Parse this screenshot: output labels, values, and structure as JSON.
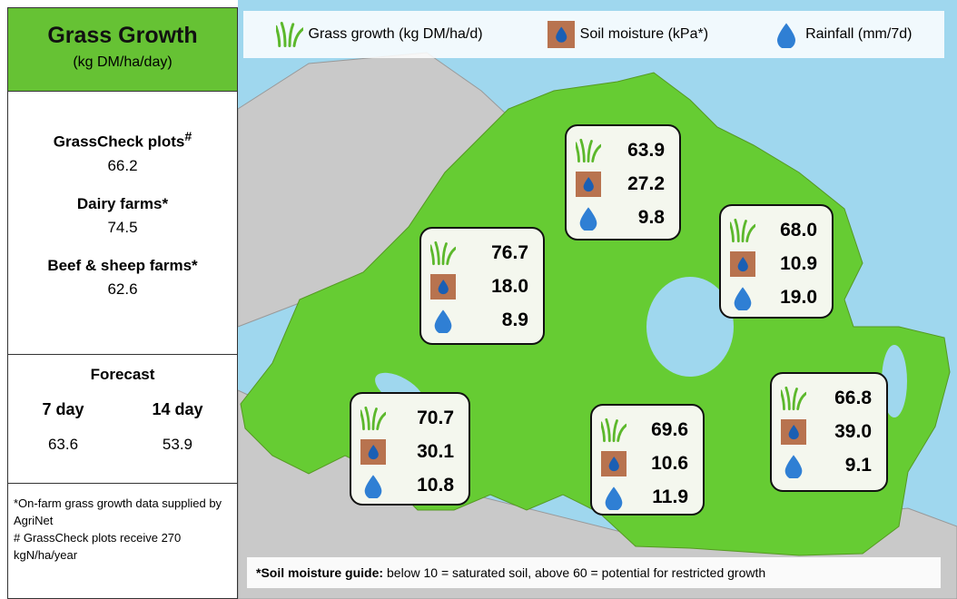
{
  "sidebar": {
    "title": "Grass Growth",
    "subtitle": "(kg DM/ha/day)",
    "stats": [
      {
        "label": "GrassCheck plots",
        "mark": "#",
        "value": "66.2"
      },
      {
        "label": "Dairy farms*",
        "value": "74.5"
      },
      {
        "label": "Beef & sheep farms*",
        "value": "62.6"
      }
    ],
    "forecast": {
      "title": "Forecast",
      "columns": [
        {
          "label": "7 day",
          "value": "63.6"
        },
        {
          "label": "14 day",
          "value": "53.9"
        }
      ]
    },
    "notes": [
      "*On-farm grass growth data supplied by AgriNet",
      "# GrassCheck plots receive 270 kgN/ha/year"
    ]
  },
  "legend": [
    "Grass growth (kg DM/ha/d)",
    "Soil moisture (kPa*)",
    "Rainfall (mm/7d)"
  ],
  "regions": [
    {
      "grass": "63.9",
      "soil": "27.2",
      "rain": "9.8"
    },
    {
      "grass": "76.7",
      "soil": "18.0",
      "rain": "8.9"
    },
    {
      "grass": "68.0",
      "soil": "10.9",
      "rain": "19.0"
    },
    {
      "grass": "70.7",
      "soil": "30.1",
      "rain": "10.8"
    },
    {
      "grass": "69.6",
      "soil": "10.6",
      "rain": "11.9"
    },
    {
      "grass": "66.8",
      "soil": "39.0",
      "rain": "9.1"
    }
  ],
  "footer": {
    "label": "*Soil moisture guide:",
    "text": "below 10 = saturated soil, above 60 = potential for restricted growth"
  }
}
